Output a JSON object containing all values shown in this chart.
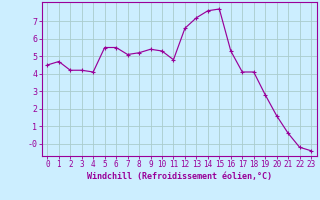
{
  "x": [
    0,
    1,
    2,
    3,
    4,
    5,
    6,
    7,
    8,
    9,
    10,
    11,
    12,
    13,
    14,
    15,
    16,
    17,
    18,
    19,
    20,
    21,
    22,
    23
  ],
  "y": [
    4.5,
    4.7,
    4.2,
    4.2,
    4.1,
    5.5,
    5.5,
    5.1,
    5.2,
    5.4,
    5.3,
    4.8,
    6.6,
    7.2,
    7.6,
    7.7,
    5.3,
    4.1,
    4.1,
    2.8,
    1.6,
    0.6,
    -0.2,
    -0.4
  ],
  "line_color": "#990099",
  "marker": "+",
  "marker_size": 3.0,
  "bg_color": "#cceeff",
  "grid_color": "#aacccc",
  "xlabel": "Windchill (Refroidissement éolien,°C)",
  "ylabel": "",
  "yticks": [
    0,
    1,
    2,
    3,
    4,
    5,
    6,
    7
  ],
  "ytick_labels": [
    "-0",
    "1",
    "2",
    "3",
    "4",
    "5",
    "6",
    "7"
  ],
  "xticks": [
    0,
    1,
    2,
    3,
    4,
    5,
    6,
    7,
    8,
    9,
    10,
    11,
    12,
    13,
    14,
    15,
    16,
    17,
    18,
    19,
    20,
    21,
    22,
    23
  ],
  "xlim": [
    -0.5,
    23.5
  ],
  "ylim": [
    -0.7,
    8.1
  ],
  "tick_color": "#990099",
  "spine_color": "#990099",
  "xlabel_color": "#990099",
  "font_size": 5.5,
  "xlabel_size": 6.0
}
